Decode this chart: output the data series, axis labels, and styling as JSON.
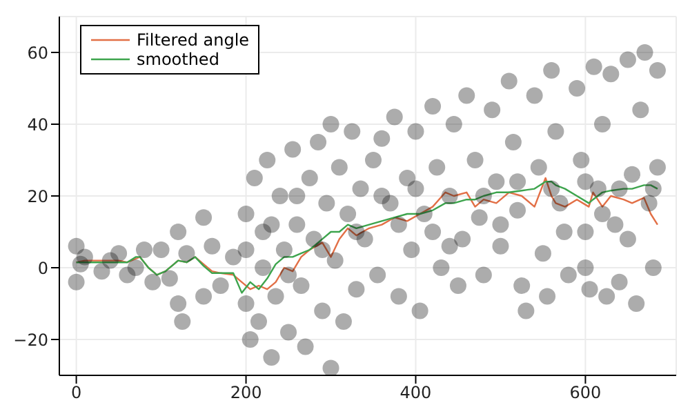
{
  "chart_data": {
    "type": "line",
    "xlim": [
      -20,
      707
    ],
    "ylim": [
      -30,
      70
    ],
    "xticks": [
      0,
      200,
      400,
      600
    ],
    "yticks": [
      {
        "value": -20,
        "label": "−20"
      },
      0,
      20,
      40,
      60
    ],
    "grid": true,
    "legend": "top left",
    "marker": "none",
    "line_style": "solid",
    "series": [
      {
        "type": "scatter",
        "marker": "circle",
        "color": "#111111",
        "x": [
          0,
          0,
          10,
          30,
          50,
          70,
          90,
          100,
          110,
          120,
          120,
          125,
          130,
          150,
          150,
          160,
          170,
          185,
          5,
          40,
          80,
          60,
          200,
          200,
          200,
          205,
          210,
          215,
          220,
          220,
          225,
          230,
          235,
          240,
          245,
          250,
          255,
          260,
          265,
          270,
          275,
          280,
          285,
          290,
          295,
          300,
          300,
          305,
          310,
          315,
          320,
          325,
          330,
          335,
          340,
          350,
          355,
          360,
          370,
          375,
          380,
          390,
          395,
          400,
          405,
          410,
          420,
          425,
          430,
          440,
          445,
          450,
          455,
          460,
          470,
          475,
          480,
          490,
          495,
          500,
          510,
          515,
          520,
          525,
          530,
          540,
          545,
          550,
          555,
          560,
          565,
          570,
          575,
          580,
          590,
          595,
          600,
          605,
          610,
          615,
          620,
          625,
          630,
          635,
          640,
          650,
          655,
          660,
          665,
          670,
          675,
          680,
          685,
          685,
          230,
          260,
          290,
          330,
          360,
          400,
          440,
          480,
          520,
          560,
          600,
          640,
          680,
          620,
          500,
          420,
          380,
          250,
          600,
          650
        ],
        "values": [
          -4,
          6,
          3,
          -1,
          4,
          0,
          -4,
          5,
          -3,
          10,
          -10,
          -15,
          4,
          14,
          -8,
          6,
          -5,
          3,
          1,
          2,
          5,
          -2,
          -10,
          5,
          15,
          -20,
          25,
          -15,
          0,
          10,
          30,
          -25,
          -8,
          20,
          5,
          -18,
          33,
          12,
          -5,
          -22,
          25,
          8,
          35,
          -12,
          18,
          -28,
          40,
          2,
          28,
          -15,
          15,
          38,
          -6,
          22,
          8,
          30,
          -2,
          36,
          18,
          42,
          -8,
          25,
          5,
          38,
          -12,
          15,
          45,
          28,
          0,
          20,
          40,
          -5,
          8,
          48,
          30,
          14,
          -2,
          44,
          24,
          6,
          52,
          35,
          16,
          -5,
          -12,
          48,
          28,
          4,
          -8,
          55,
          38,
          18,
          10,
          -2,
          50,
          30,
          0,
          -6,
          56,
          22,
          40,
          -8,
          54,
          12,
          -4,
          58,
          26,
          -10,
          44,
          60,
          18,
          0,
          55,
          28,
          12,
          20,
          5,
          10,
          20,
          22,
          6,
          20,
          24,
          22,
          24,
          22,
          22,
          15,
          12,
          10,
          12,
          -2,
          10,
          8
        ]
      },
      {
        "name": "Filtered angle",
        "color": "#e26f46",
        "x": [
          0,
          10,
          20,
          30,
          40,
          50,
          60,
          70,
          75,
          85,
          95,
          105,
          115,
          120,
          130,
          140,
          150,
          160,
          170,
          185,
          195,
          205,
          215,
          225,
          235,
          245,
          255,
          265,
          275,
          290,
          300,
          310,
          320,
          330,
          345,
          360,
          375,
          390,
          405,
          420,
          435,
          445,
          460,
          470,
          480,
          495,
          510,
          525,
          540,
          553,
          560,
          565,
          576,
          590,
          604,
          609,
          620,
          630,
          645,
          655,
          669,
          677,
          685
        ],
        "values": [
          1.5,
          2,
          2,
          2,
          2,
          2,
          1.5,
          2.5,
          3,
          0,
          -2,
          -1,
          1,
          2,
          1.5,
          3,
          1,
          -1,
          -1.5,
          -2,
          -4,
          -6,
          -5,
          -6,
          -4,
          0,
          -1,
          3,
          5,
          7,
          3,
          8,
          11,
          9,
          11,
          12,
          14,
          13,
          15,
          17,
          21,
          20,
          21,
          17,
          19,
          18,
          21,
          20,
          17,
          25,
          20,
          18,
          17,
          19,
          17,
          21,
          17,
          20,
          19,
          18,
          19.5,
          15,
          12
        ]
      },
      {
        "name": "smoothed",
        "color": "#3da44d",
        "x": [
          0,
          10,
          20,
          30,
          40,
          50,
          60,
          70,
          75,
          85,
          95,
          105,
          115,
          120,
          130,
          140,
          150,
          160,
          170,
          185,
          195,
          205,
          215,
          225,
          235,
          245,
          255,
          265,
          275,
          290,
          300,
          310,
          320,
          330,
          345,
          360,
          375,
          390,
          405,
          420,
          435,
          445,
          460,
          470,
          480,
          495,
          510,
          525,
          540,
          553,
          560,
          565,
          576,
          590,
          604,
          609,
          620,
          630,
          645,
          655,
          669,
          677,
          685
        ],
        "values": [
          1.5,
          1.5,
          1.5,
          1.5,
          1.5,
          1.5,
          1.5,
          3,
          3,
          0,
          -2,
          -1,
          1,
          2,
          1.5,
          3,
          0.5,
          -1.5,
          -1.5,
          -1.5,
          -7,
          -4,
          -6,
          -3,
          1,
          3,
          3,
          4,
          5,
          8,
          10,
          10,
          12,
          11,
          12,
          13,
          14,
          15,
          15,
          16,
          18,
          18,
          19,
          19,
          20,
          21,
          21,
          21.5,
          22,
          24,
          24,
          23,
          22,
          20,
          18,
          19,
          21,
          21.5,
          22,
          22,
          23,
          23,
          22
        ]
      }
    ]
  }
}
